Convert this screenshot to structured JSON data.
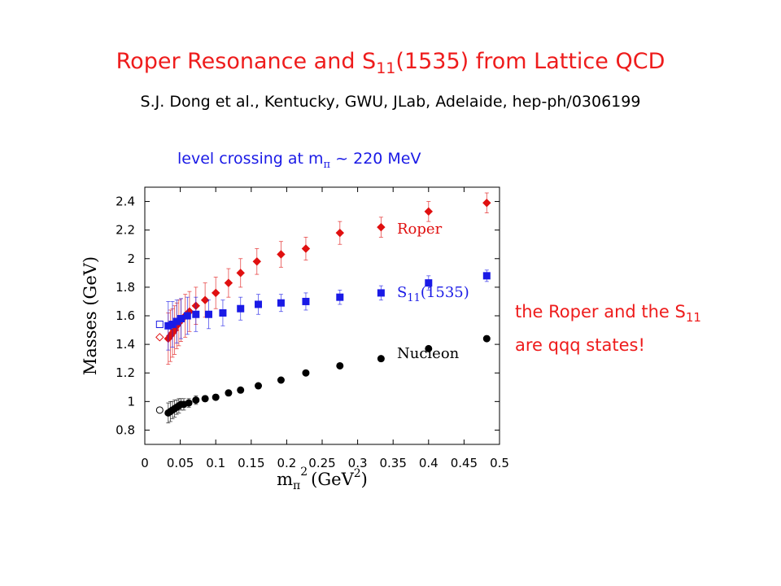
{
  "header": {
    "title_main": "Roper Resonance and S",
    "title_sub": "11",
    "title_rest": "(1535) from Lattice QCD",
    "authors": "S.J. Dong et al., Kentucky, GWU, JLab, Adelaide, hep-ph/0306199"
  },
  "annotation": {
    "prefix": "level crossing at m",
    "sub": "π",
    "tilde": "~",
    "suffix": "220 MeV"
  },
  "note": {
    "line1": "the Roper and the S",
    "line1_sub": "11",
    "line2": "are qqq states!"
  },
  "chart_data": {
    "type": "scatter",
    "xlabel": "m",
    "xlabel_sub": "π",
    "xlabel_sup": "2",
    "xlabel_unit": "(GeV",
    "xlabel_unit_sup": "2",
    "xlabel_close": ")",
    "ylabel": "Masses (GeV)",
    "xlim": [
      0,
      0.5
    ],
    "ylim": [
      0.7,
      2.5
    ],
    "xticks": [
      "0",
      "0.05",
      "0.1",
      "0.15",
      "0.2",
      "0.25",
      "0.3",
      "0.35",
      "0.4",
      "0.45",
      "0.5"
    ],
    "yticks": [
      "0.8",
      "1",
      "1.2",
      "1.4",
      "1.6",
      "1.8",
      "2",
      "2.2",
      "2.4"
    ],
    "colors": {
      "roper": "#e01010",
      "s11": "#1a1ae6",
      "nucleon": "#000000"
    },
    "series": [
      {
        "name": "Roper",
        "marker": "diamond",
        "points": [
          {
            "x": 0.033,
            "y": 1.44,
            "err": 0.18
          },
          {
            "x": 0.036,
            "y": 1.46,
            "err": 0.18
          },
          {
            "x": 0.039,
            "y": 1.48,
            "err": 0.17
          },
          {
            "x": 0.042,
            "y": 1.5,
            "err": 0.17
          },
          {
            "x": 0.045,
            "y": 1.53,
            "err": 0.16
          },
          {
            "x": 0.048,
            "y": 1.55,
            "err": 0.16
          },
          {
            "x": 0.051,
            "y": 1.57,
            "err": 0.15
          },
          {
            "x": 0.057,
            "y": 1.6,
            "err": 0.15
          },
          {
            "x": 0.063,
            "y": 1.63,
            "err": 0.14
          },
          {
            "x": 0.072,
            "y": 1.67,
            "err": 0.13
          },
          {
            "x": 0.085,
            "y": 1.71,
            "err": 0.12
          },
          {
            "x": 0.1,
            "y": 1.76,
            "err": 0.11
          },
          {
            "x": 0.118,
            "y": 1.83,
            "err": 0.1
          },
          {
            "x": 0.135,
            "y": 1.9,
            "err": 0.1
          },
          {
            "x": 0.158,
            "y": 1.98,
            "err": 0.09
          },
          {
            "x": 0.192,
            "y": 2.03,
            "err": 0.09
          },
          {
            "x": 0.227,
            "y": 2.07,
            "err": 0.08
          },
          {
            "x": 0.275,
            "y": 2.18,
            "err": 0.08
          },
          {
            "x": 0.333,
            "y": 2.22,
            "err": 0.07
          },
          {
            "x": 0.4,
            "y": 2.33,
            "err": 0.07
          },
          {
            "x": 0.482,
            "y": 2.39,
            "err": 0.07
          }
        ],
        "chiral_points": [
          {
            "x": 0.021,
            "y": 1.45
          }
        ]
      },
      {
        "name": "S",
        "name_sub": "11",
        "name_rest": "(1535)",
        "marker": "square",
        "points": [
          {
            "x": 0.033,
            "y": 1.53,
            "err": 0.17
          },
          {
            "x": 0.039,
            "y": 1.54,
            "err": 0.16
          },
          {
            "x": 0.045,
            "y": 1.56,
            "err": 0.15
          },
          {
            "x": 0.051,
            "y": 1.58,
            "err": 0.14
          },
          {
            "x": 0.06,
            "y": 1.6,
            "err": 0.13
          },
          {
            "x": 0.072,
            "y": 1.61,
            "err": 0.12
          },
          {
            "x": 0.09,
            "y": 1.61,
            "err": 0.1
          },
          {
            "x": 0.11,
            "y": 1.62,
            "err": 0.09
          },
          {
            "x": 0.135,
            "y": 1.65,
            "err": 0.08
          },
          {
            "x": 0.16,
            "y": 1.68,
            "err": 0.07
          },
          {
            "x": 0.192,
            "y": 1.69,
            "err": 0.06
          },
          {
            "x": 0.227,
            "y": 1.7,
            "err": 0.06
          },
          {
            "x": 0.275,
            "y": 1.73,
            "err": 0.05
          },
          {
            "x": 0.333,
            "y": 1.76,
            "err": 0.05
          },
          {
            "x": 0.4,
            "y": 1.83,
            "err": 0.05
          },
          {
            "x": 0.482,
            "y": 1.88,
            "err": 0.04
          }
        ],
        "chiral_points": [
          {
            "x": 0.021,
            "y": 1.54
          }
        ]
      },
      {
        "name": "Nucleon",
        "marker": "circle",
        "points": [
          {
            "x": 0.033,
            "y": 0.92,
            "err": 0.07
          },
          {
            "x": 0.036,
            "y": 0.93,
            "err": 0.07
          },
          {
            "x": 0.039,
            "y": 0.94,
            "err": 0.06
          },
          {
            "x": 0.042,
            "y": 0.95,
            "err": 0.06
          },
          {
            "x": 0.045,
            "y": 0.96,
            "err": 0.05
          },
          {
            "x": 0.048,
            "y": 0.97,
            "err": 0.05
          },
          {
            "x": 0.051,
            "y": 0.98,
            "err": 0.04
          },
          {
            "x": 0.055,
            "y": 0.98,
            "err": 0.04
          },
          {
            "x": 0.062,
            "y": 0.99,
            "err": 0.03
          },
          {
            "x": 0.072,
            "y": 1.01,
            "err": 0.03
          },
          {
            "x": 0.085,
            "y": 1.02,
            "err": 0.02
          },
          {
            "x": 0.1,
            "y": 1.03,
            "err": 0.02
          },
          {
            "x": 0.118,
            "y": 1.06,
            "err": 0.02
          },
          {
            "x": 0.135,
            "y": 1.08,
            "err": 0.01
          },
          {
            "x": 0.16,
            "y": 1.11,
            "err": 0.01
          },
          {
            "x": 0.192,
            "y": 1.15,
            "err": 0.01
          },
          {
            "x": 0.227,
            "y": 1.2,
            "err": 0.01
          },
          {
            "x": 0.275,
            "y": 1.25,
            "err": 0.01
          },
          {
            "x": 0.333,
            "y": 1.3,
            "err": 0.01
          },
          {
            "x": 0.4,
            "y": 1.37,
            "err": 0.01
          },
          {
            "x": 0.482,
            "y": 1.44,
            "err": 0.02
          }
        ],
        "chiral_points": [
          {
            "x": 0.021,
            "y": 0.94
          }
        ]
      }
    ]
  }
}
